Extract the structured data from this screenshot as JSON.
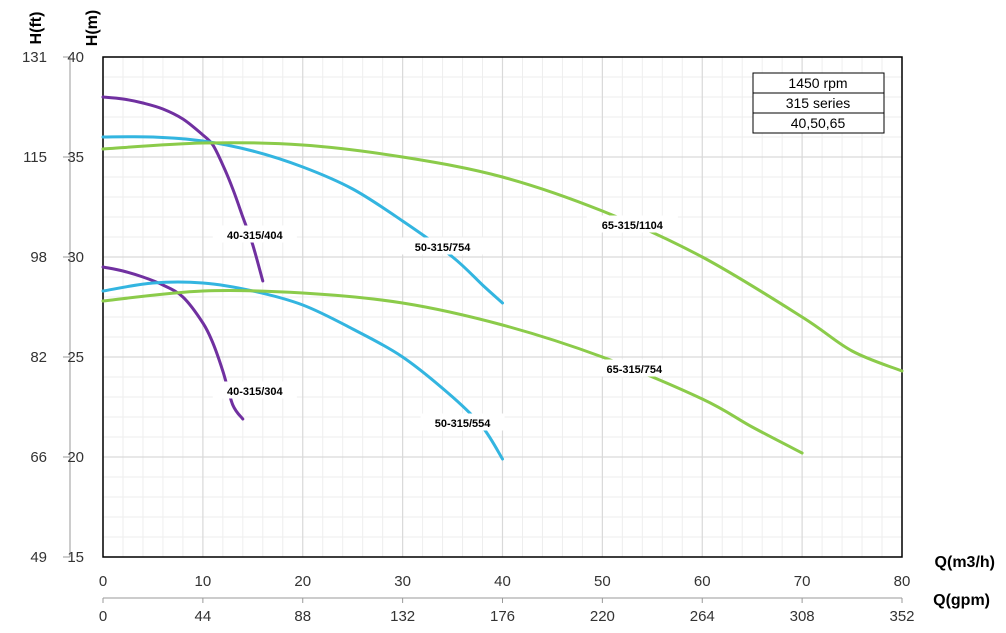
{
  "chart_data": {
    "type": "line",
    "xlabel_primary": "Q(m3/h)",
    "xlabel_secondary": "Q(gpm)",
    "ylabel_primary": "H(m)",
    "ylabel_secondary": "H(ft)",
    "xlim": [
      0,
      80
    ],
    "ylim": [
      15,
      40
    ],
    "x_ticks_m3h": [
      "0",
      "10",
      "20",
      "30",
      "40",
      "50",
      "60",
      "70",
      "80"
    ],
    "x_ticks_gpm": [
      "0",
      "44",
      "88",
      "132",
      "176",
      "220",
      "264",
      "308",
      "352"
    ],
    "y_ticks_m": [
      "15",
      "20",
      "25",
      "30",
      "35",
      "40"
    ],
    "y_ticks_ft": [
      "49",
      "66",
      "82",
      "98",
      "115",
      "131"
    ],
    "legend": [
      "1450 rpm",
      "315 series",
      "40,50,65"
    ],
    "colors": {
      "purple": "#7030A0",
      "blue": "#33B5E0",
      "green": "#8BCB4A",
      "grid": "#D9D9D9"
    },
    "series": [
      {
        "name": "40-315/404",
        "color": "#7030A0",
        "x": [
          0,
          2,
          4,
          6,
          8,
          10,
          11,
          12,
          13,
          14,
          15,
          16
        ],
        "y": [
          38.0,
          37.9,
          37.7,
          37.4,
          36.9,
          36.1,
          35.6,
          34.6,
          33.4,
          32.0,
          30.6,
          28.8
        ]
      },
      {
        "name": "40-315/304",
        "color": "#7030A0",
        "x": [
          0,
          2,
          4,
          6,
          8,
          10,
          11,
          12,
          13,
          14
        ],
        "y": [
          29.5,
          29.3,
          29.0,
          28.6,
          28.0,
          26.7,
          25.7,
          24.3,
          22.6,
          21.9
        ]
      },
      {
        "name": "50-315/754",
        "color": "#33B5E0",
        "x": [
          0,
          5,
          10,
          15,
          20,
          25,
          30,
          35,
          38,
          40
        ],
        "y": [
          36.0,
          36.0,
          35.8,
          35.3,
          34.5,
          33.4,
          31.8,
          30.0,
          28.6,
          27.7
        ]
      },
      {
        "name": "50-315/554",
        "color": "#33B5E0",
        "x": [
          0,
          5,
          10,
          15,
          20,
          25,
          30,
          35,
          38,
          40
        ],
        "y": [
          28.3,
          28.7,
          28.7,
          28.3,
          27.6,
          26.4,
          25.0,
          23.0,
          21.5,
          19.9
        ]
      },
      {
        "name": "65-315/1104",
        "color": "#8BCB4A",
        "x": [
          0,
          10,
          20,
          30,
          40,
          50,
          60,
          70,
          75,
          80
        ],
        "y": [
          35.4,
          35.7,
          35.6,
          35.0,
          34.0,
          32.3,
          30.0,
          27.0,
          25.3,
          24.3
        ]
      },
      {
        "name": "65-315/754",
        "color": "#8BCB4A",
        "x": [
          0,
          10,
          20,
          30,
          40,
          50,
          60,
          65,
          70
        ],
        "y": [
          27.8,
          28.3,
          28.2,
          27.7,
          26.6,
          25.0,
          22.9,
          21.5,
          20.2
        ]
      }
    ],
    "curve_labels": [
      {
        "text": "40-315/404",
        "x": 15.2,
        "y": 31.1
      },
      {
        "text": "40-315/304",
        "x": 15.2,
        "y": 23.3
      },
      {
        "text": "50-315/754",
        "x": 34.0,
        "y": 30.5
      },
      {
        "text": "50-315/554",
        "x": 36.0,
        "y": 21.7
      },
      {
        "text": "65-315/1104",
        "x": 53.0,
        "y": 31.6
      },
      {
        "text": "65-315/754",
        "x": 53.2,
        "y": 24.4
      }
    ]
  }
}
